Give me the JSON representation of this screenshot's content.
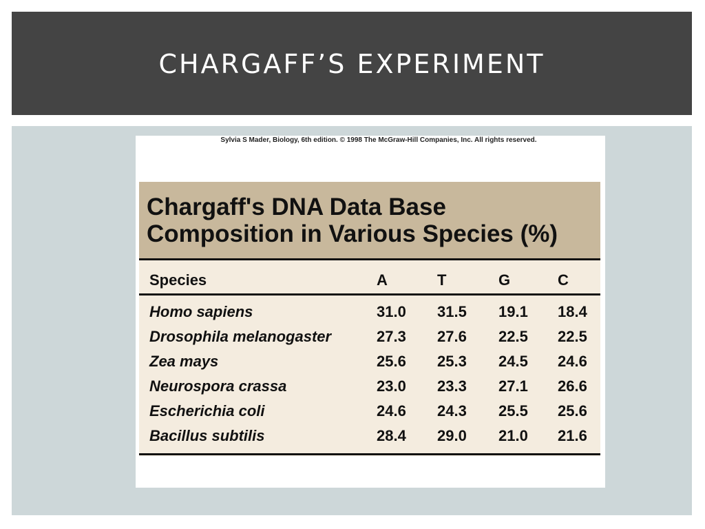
{
  "slide": {
    "title": "CHARGAFF’S EXPERIMENT"
  },
  "figure": {
    "credit": "Sylvia S Mader, Biology, 6th edition. © 1998  The McGraw-Hill Companies, Inc. All rights reserved.",
    "table_title_line1": "Chargaff's DNA Data Base",
    "table_title_line2": "Composition in Various Species (%)",
    "columns": [
      "Species",
      "A",
      "T",
      "G",
      "C"
    ],
    "rows": [
      {
        "species": "Homo sapiens",
        "A": "31.0",
        "T": "31.5",
        "G": "19.1",
        "C": "18.4"
      },
      {
        "species": "Drosophila melanogaster",
        "A": "27.3",
        "T": "27.6",
        "G": "22.5",
        "C": "22.5"
      },
      {
        "species": "Zea mays",
        "A": "25.6",
        "T": "25.3",
        "G": "24.5",
        "C": "24.6"
      },
      {
        "species": "Neurospora crassa",
        "A": "23.0",
        "T": "23.3",
        "G": "27.1",
        "C": "26.6"
      },
      {
        "species": "Escherichia coli",
        "A": "24.6",
        "T": "24.3",
        "G": "25.5",
        "C": "25.6"
      },
      {
        "species": "Bacillus subtilis",
        "A": "28.4",
        "T": "29.0",
        "G": "21.0",
        "C": "21.6"
      }
    ]
  },
  "colors": {
    "title_bar": "#444444",
    "panel": "#cdd7d9",
    "table_header": "#c8b89c",
    "table_body": "#f4ecdf"
  }
}
